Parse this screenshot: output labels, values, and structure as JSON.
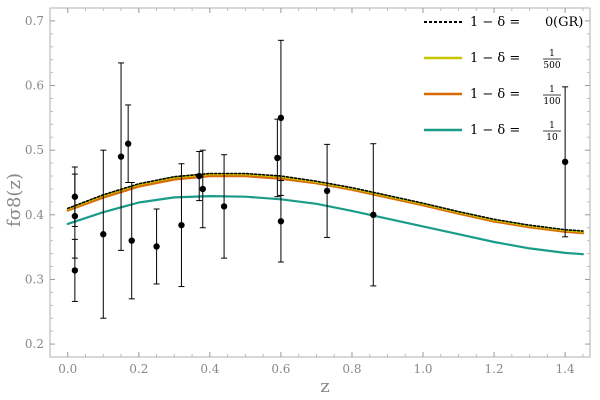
{
  "chart_data": {
    "type": "line",
    "xlabel": "z",
    "ylabel": "fσ8(z)",
    "xlim": [
      -0.05,
      1.47
    ],
    "ylim": [
      0.18,
      0.72
    ],
    "x_ticks": [
      "0.0",
      "0.2",
      "0.4",
      "0.6",
      "0.8",
      "1.0",
      "1.2",
      "1.4"
    ],
    "y_ticks": [
      "0.2",
      "0.3",
      "0.4",
      "0.5",
      "0.6",
      "0.7"
    ],
    "grid": false,
    "legend_position": "top-right",
    "series": [
      {
        "legend_prefix": "1 − δ = ",
        "legend_value": "0",
        "legend_suffix": " (GR)",
        "color": "#000000",
        "style": "dotted",
        "x": [
          0,
          0.1,
          0.2,
          0.3,
          0.4,
          0.5,
          0.6,
          0.7,
          0.8,
          0.9,
          1.0,
          1.1,
          1.2,
          1.3,
          1.4,
          1.45
        ],
        "y": [
          0.41,
          0.431,
          0.448,
          0.459,
          0.464,
          0.464,
          0.46,
          0.452,
          0.442,
          0.43,
          0.418,
          0.405,
          0.393,
          0.384,
          0.377,
          0.375
        ]
      },
      {
        "legend_prefix": "1 − δ = ",
        "legend_num": "1",
        "legend_den": "500",
        "color": "#c8c800",
        "style": "solid",
        "x": [
          0,
          0.1,
          0.2,
          0.3,
          0.4,
          0.5,
          0.6,
          0.7,
          0.8,
          0.9,
          1.0,
          1.1,
          1.2,
          1.3,
          1.4,
          1.45
        ],
        "y": [
          0.409,
          0.43,
          0.447,
          0.458,
          0.463,
          0.463,
          0.459,
          0.451,
          0.441,
          0.429,
          0.417,
          0.404,
          0.392,
          0.383,
          0.376,
          0.374
        ]
      },
      {
        "legend_prefix": "1 − δ = ",
        "legend_num": "1",
        "legend_den": "100",
        "color": "#d96a06",
        "style": "solid",
        "x": [
          0,
          0.1,
          0.2,
          0.3,
          0.4,
          0.5,
          0.6,
          0.7,
          0.8,
          0.9,
          1.0,
          1.1,
          1.2,
          1.3,
          1.4,
          1.45
        ],
        "y": [
          0.407,
          0.427,
          0.444,
          0.455,
          0.46,
          0.46,
          0.456,
          0.449,
          0.439,
          0.427,
          0.415,
          0.402,
          0.39,
          0.381,
          0.374,
          0.372
        ]
      },
      {
        "legend_prefix": "1 − δ = ",
        "legend_num": "1",
        "legend_den": "10",
        "color": "#1a9c8a",
        "style": "solid",
        "x": [
          0,
          0.1,
          0.2,
          0.3,
          0.4,
          0.5,
          0.6,
          0.7,
          0.8,
          0.9,
          1.0,
          1.1,
          1.2,
          1.3,
          1.4,
          1.45
        ],
        "y": [
          0.386,
          0.404,
          0.419,
          0.427,
          0.429,
          0.428,
          0.424,
          0.417,
          0.406,
          0.394,
          0.382,
          0.37,
          0.358,
          0.348,
          0.341,
          0.339
        ]
      }
    ],
    "observations": [
      {
        "x": 0.02,
        "y": 0.314,
        "err": 0.048
      },
      {
        "x": 0.02,
        "y": 0.398,
        "err": 0.065
      },
      {
        "x": 0.02,
        "y": 0.428,
        "err": 0.046
      },
      {
        "x": 0.1,
        "y": 0.37,
        "err": 0.13
      },
      {
        "x": 0.15,
        "y": 0.49,
        "err": 0.145
      },
      {
        "x": 0.17,
        "y": 0.51,
        "err": 0.06
      },
      {
        "x": 0.18,
        "y": 0.36,
        "err": 0.09
      },
      {
        "x": 0.25,
        "y": 0.351,
        "err": 0.058
      },
      {
        "x": 0.32,
        "y": 0.384,
        "err": 0.095
      },
      {
        "x": 0.37,
        "y": 0.46,
        "err": 0.038
      },
      {
        "x": 0.38,
        "y": 0.44,
        "err": 0.06
      },
      {
        "x": 0.44,
        "y": 0.413,
        "err": 0.08
      },
      {
        "x": 0.59,
        "y": 0.488,
        "err": 0.06
      },
      {
        "x": 0.6,
        "y": 0.39,
        "err": 0.063
      },
      {
        "x": 0.6,
        "y": 0.55,
        "err": 0.12
      },
      {
        "x": 0.73,
        "y": 0.437,
        "err": 0.072
      },
      {
        "x": 0.86,
        "y": 0.4,
        "err": 0.11
      },
      {
        "x": 1.4,
        "y": 0.482,
        "err": 0.116
      }
    ]
  }
}
